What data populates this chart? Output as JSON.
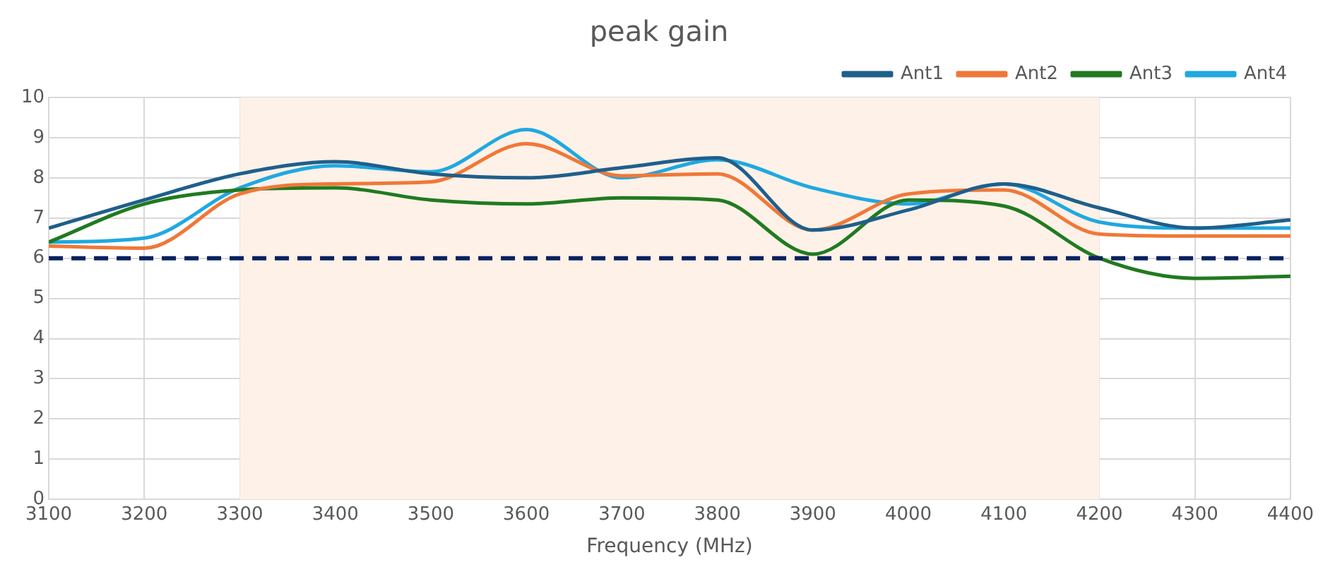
{
  "chart_data": {
    "type": "line",
    "title": "peak gain",
    "xlabel": "Frequency (MHz)",
    "x": [
      3100,
      3200,
      3300,
      3400,
      3500,
      3600,
      3700,
      3800,
      3900,
      4000,
      4100,
      4200,
      4300,
      4400
    ],
    "series": [
      {
        "name": "Ant1",
        "color": "#1f5f8b",
        "values": [
          6.75,
          7.45,
          8.1,
          8.4,
          8.1,
          8.0,
          8.25,
          8.5,
          6.7,
          7.2,
          7.85,
          7.25,
          6.75,
          6.95
        ]
      },
      {
        "name": "Ant2",
        "color": "#f07838",
        "values": [
          6.3,
          6.25,
          7.6,
          7.85,
          7.9,
          8.85,
          8.05,
          8.1,
          6.7,
          7.6,
          7.7,
          6.6,
          6.55,
          6.55
        ]
      },
      {
        "name": "Ant3",
        "color": "#217a21",
        "values": [
          6.4,
          7.35,
          7.7,
          7.75,
          7.45,
          7.35,
          7.5,
          7.45,
          6.1,
          7.45,
          7.3,
          6.0,
          5.5,
          5.55
        ]
      },
      {
        "name": "Ant4",
        "color": "#20a8e0",
        "values": [
          6.4,
          6.5,
          7.75,
          8.3,
          8.15,
          9.2,
          8.0,
          8.45,
          7.75,
          7.35,
          7.85,
          6.9,
          6.75,
          6.75
        ]
      }
    ],
    "xlim": [
      3100,
      4400
    ],
    "xticks": [
      3100,
      3200,
      3300,
      3400,
      3500,
      3600,
      3700,
      3800,
      3900,
      4000,
      4100,
      4200,
      4300,
      4400
    ],
    "ylim": [
      0,
      10
    ],
    "yticks": [
      0,
      1,
      2,
      3,
      4,
      5,
      6,
      7,
      8,
      9,
      10
    ],
    "ref_lines": [
      {
        "axis": "y",
        "value": 6,
        "color": "#0a2160",
        "line_style": "dashed"
      }
    ],
    "bands": [
      {
        "axis": "x",
        "from": 3300,
        "to": 4200,
        "color": "#fdf1e8"
      }
    ],
    "grid": true,
    "legend": "top right",
    "marker": "none",
    "line_style": "solid"
  }
}
